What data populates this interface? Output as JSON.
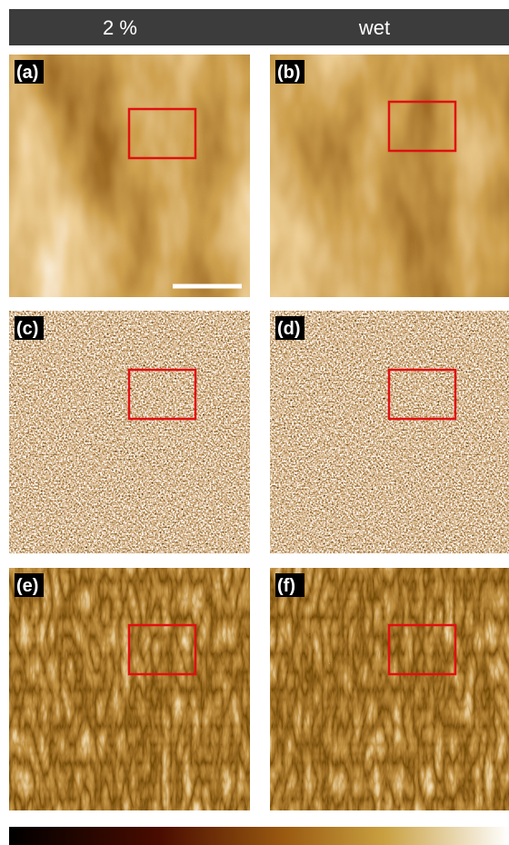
{
  "header": {
    "columns": [
      "2 %",
      "wet"
    ]
  },
  "panels": [
    {
      "label": "(a)"
    },
    {
      "label": "(b)"
    },
    {
      "label": "(c)"
    },
    {
      "label": "(d)"
    },
    {
      "label": "(e)"
    },
    {
      "label": "(f)"
    }
  ]
}
